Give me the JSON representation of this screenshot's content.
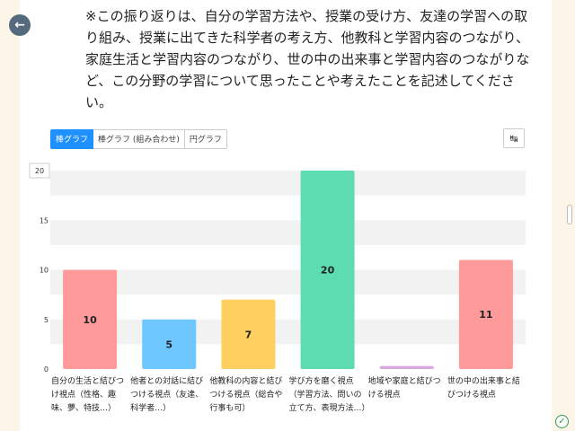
{
  "header": {
    "notice": "※この振り返りは、自分の学習方法や、授業の受け方、友達の学習への取り組み、授業に出てきた科学者の考え方、他教科と学習内容のつながり、家庭生活と学習内容のつながり、世の中の出来事と学習内容のつながりなど、この分野の学習について思ったことや考えたことを記述してください。"
  },
  "chart_tabs": [
    {
      "label": "棒グラフ",
      "active": true
    },
    {
      "label": "棒グラフ (組み合わせ)",
      "active": false
    },
    {
      "label": "円グラフ",
      "active": false
    }
  ],
  "icons": {
    "back": "back-arrow-icon",
    "export": "export-icon",
    "status": "check-circle-icon"
  },
  "chart_data": {
    "type": "bar",
    "categories": [
      "自分の生活と結びつけ視点（性格、趣味、夢、特技…）",
      "他者との対話に結びつける視点（友達、科学者…）",
      "他教科の内容と結びつける視点（総合や行事も可）",
      "学び方を磨く視点（学習方法、問いの立て方、表現方法…）",
      "地域や家庭と結びつける視点",
      "世の中の出来事と結びつける視点"
    ],
    "values": [
      10,
      5,
      7,
      20,
      0.3,
      11
    ],
    "value_labels": [
      "10",
      "5",
      "7",
      "20",
      "",
      "11"
    ],
    "colors": [
      "#ff9a9a",
      "#6ec8ff",
      "#ffd060",
      "#5cdcb0",
      "#d9a6e0",
      "#ff9a9a"
    ],
    "ylim": [
      0,
      20
    ],
    "yticks": [
      "0",
      "5",
      "10",
      "15",
      "20"
    ],
    "grid": true
  }
}
